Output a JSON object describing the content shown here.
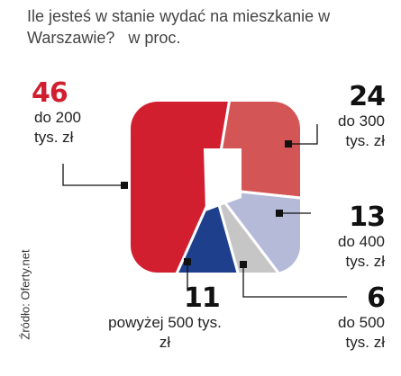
{
  "chart_data": {
    "type": "pie",
    "title": "Ile jesteś w stanie wydać na mieszkanie w Warszawie?",
    "subtitle": "w proc.",
    "source": "Źródło: Oferty.net",
    "categories": [
      "do 200 tys. zł",
      "do 300 tys. zł",
      "do 400 tys. zł",
      "do 500 tys. zł",
      "powyżej 500 tys. zł"
    ],
    "values": [
      46,
      24,
      13,
      6,
      11
    ],
    "colors": [
      "#d21f30",
      "#d45556",
      "#b6bad9",
      "#c6c6c6",
      "#1e3f8c"
    ],
    "label_color": [
      "#d21f30",
      "#111111",
      "#111111",
      "#111111",
      "#111111"
    ]
  }
}
